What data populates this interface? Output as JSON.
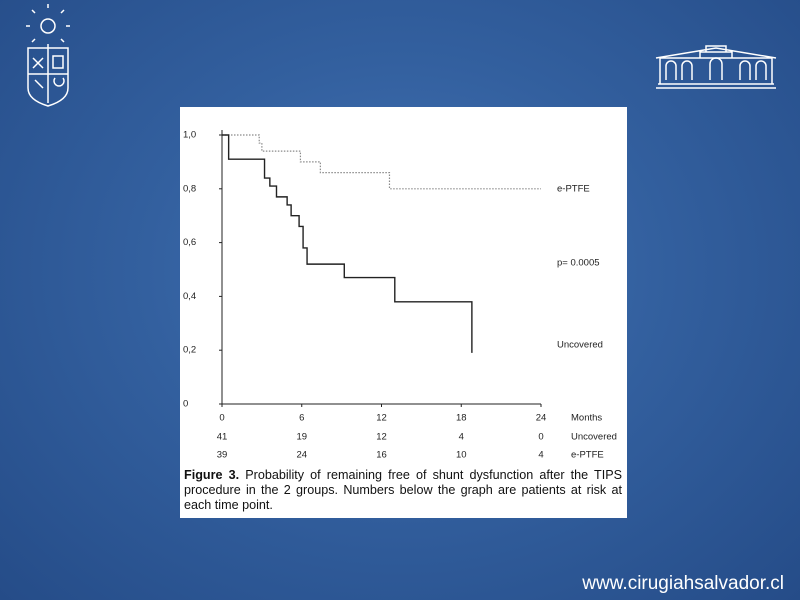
{
  "site_url": "www.cirugiahsalvador.cl",
  "chart_data": {
    "type": "line",
    "step": true,
    "xlim": [
      0,
      24
    ],
    "ylim": [
      0,
      1
    ],
    "xticks": [
      0,
      6,
      12,
      18,
      24
    ],
    "yticks": [
      0,
      {
        "value": 0.2,
        "label": "0,2"
      },
      {
        "value": 0.4,
        "label": "0,4"
      },
      {
        "value": 0.6,
        "label": "0,6"
      },
      {
        "value": 0.8,
        "label": "0,8"
      },
      {
        "value": 1,
        "label": "1,0"
      }
    ],
    "xlabel": "Months",
    "annotation": "p= 0.0005",
    "series": [
      {
        "name": "e-PTFE",
        "color": "#8a8a8a",
        "dash": "dotted",
        "x": [
          0,
          2.8,
          3.0,
          5.9,
          7.4,
          12.6,
          24
        ],
        "values": [
          1,
          0.97,
          0.94,
          0.9,
          0.86,
          0.8,
          0.8
        ]
      },
      {
        "name": "Uncovered",
        "color": "#222222",
        "dash": "solid",
        "x": [
          0,
          0.5,
          3.2,
          3.6,
          4.1,
          4.9,
          5.2,
          5.8,
          6.1,
          6.4,
          9.2,
          13.0,
          18.8
        ],
        "values": [
          1,
          0.91,
          0.84,
          0.81,
          0.77,
          0.74,
          0.7,
          0.66,
          0.58,
          0.52,
          0.47,
          0.38,
          0.19
        ]
      }
    ]
  },
  "risk_table": {
    "rows": [
      {
        "label": "Uncovered",
        "counts": [
          41,
          19,
          12,
          4,
          0
        ]
      },
      {
        "label": "e-PTFE",
        "counts": [
          39,
          24,
          16,
          10,
          4
        ]
      }
    ]
  },
  "caption": {
    "label": "Figure 3.",
    "text": "Probability of remaining free of shunt dysfunction after the TIPS procedure in the 2 groups. Numbers below the graph are patients at risk at each time point."
  }
}
